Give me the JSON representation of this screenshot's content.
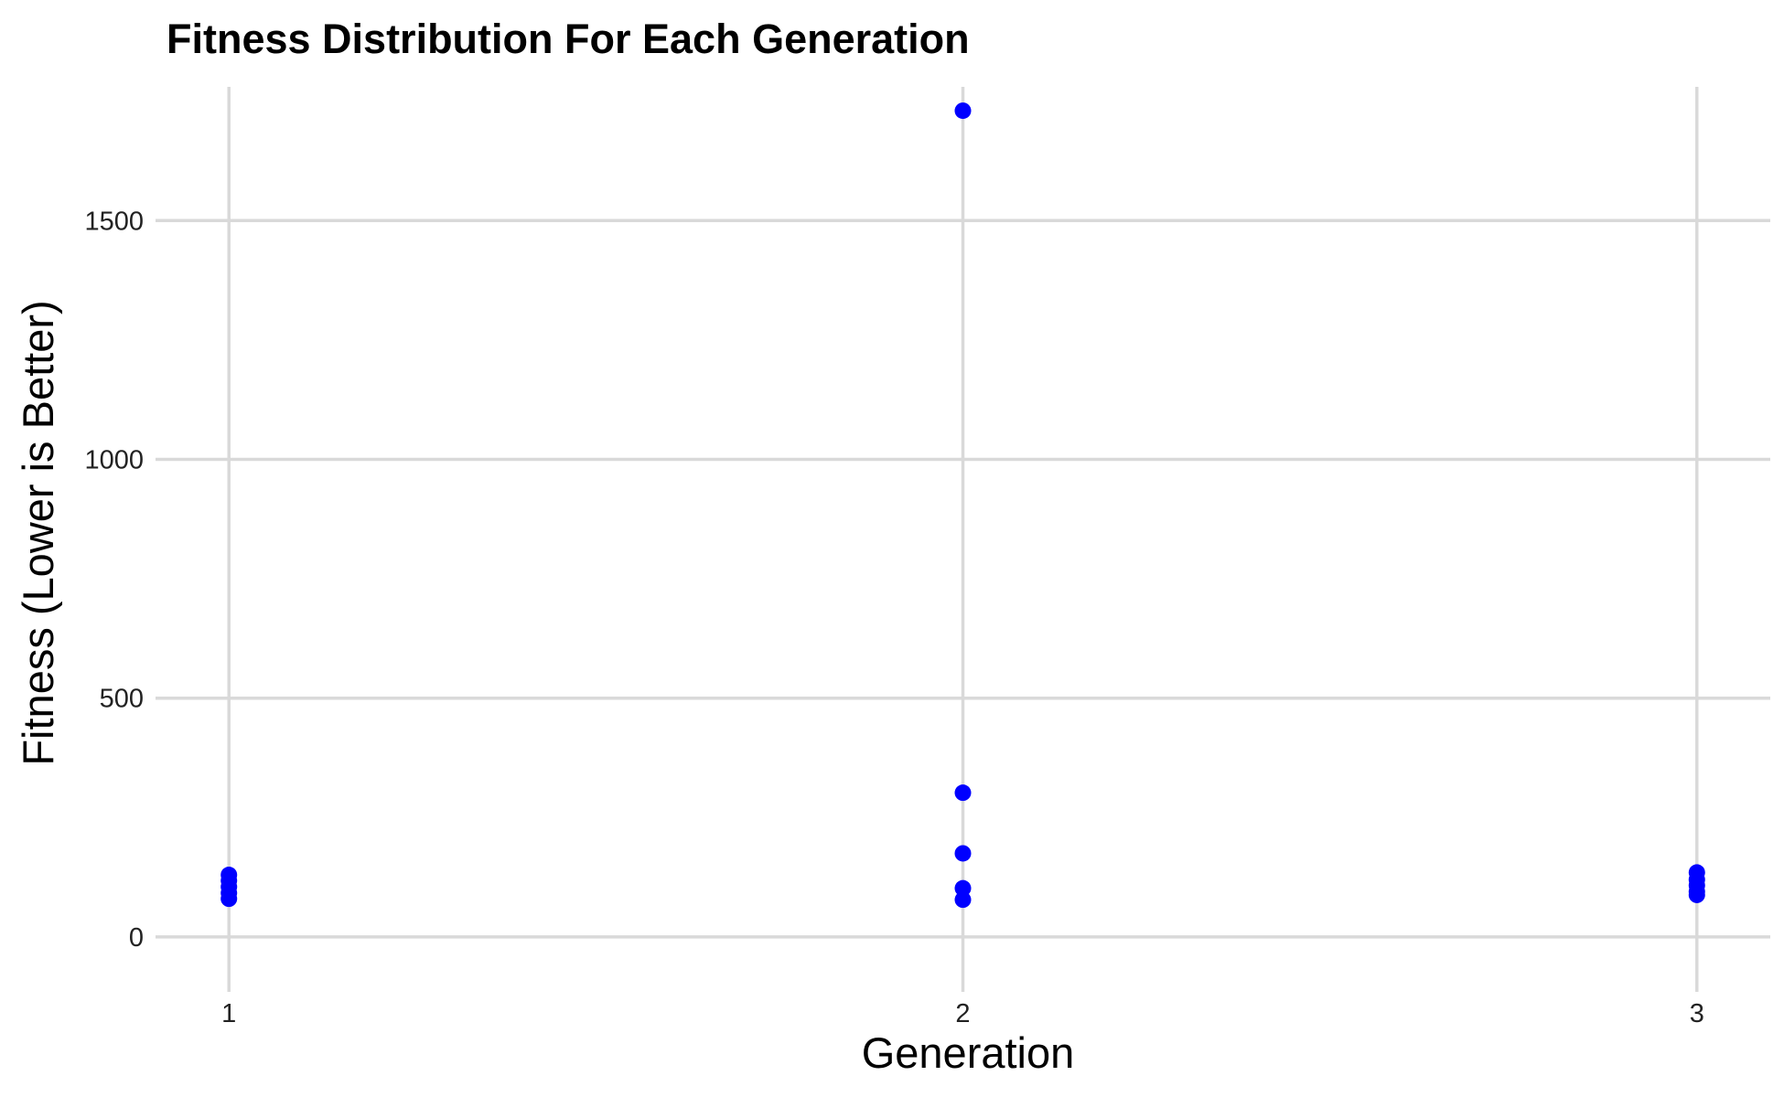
{
  "chart_data": {
    "type": "scatter",
    "title": "Fitness Distribution For Each Generation",
    "xlabel": "Generation",
    "ylabel": "Fitness (Lower is Better)",
    "x_ticks": [
      "1",
      "2",
      "3"
    ],
    "y_ticks": [
      0,
      500,
      1000,
      1500
    ],
    "xlim": [
      0.9,
      3.1
    ],
    "ylim": [
      -115,
      1780
    ],
    "grid": true,
    "point_color": "#0000ff",
    "series": [
      {
        "x": [
          1,
          1,
          1,
          1,
          1,
          2,
          2,
          2,
          2,
          2,
          3,
          3,
          3,
          3,
          3
        ],
        "y": [
          80,
          92,
          105,
          118,
          130,
          78,
          102,
          175,
          302,
          1730,
          88,
          95,
          108,
          120,
          135
        ]
      }
    ]
  }
}
